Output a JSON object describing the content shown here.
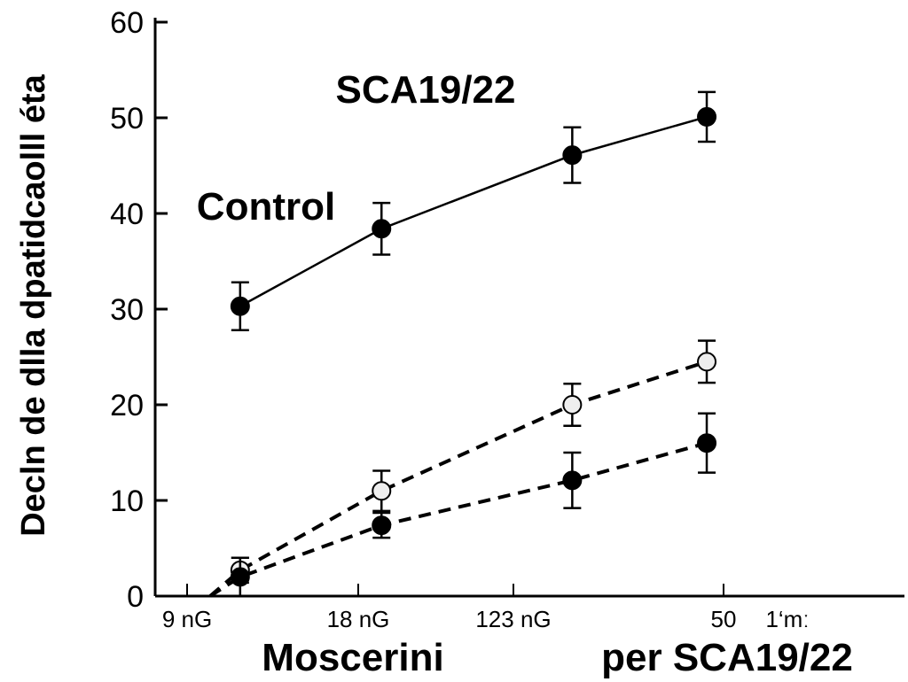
{
  "chart_data": {
    "type": "line",
    "title": "SCA19/22",
    "xlabel_parts": [
      "Moscerini",
      "per  SCA19/22"
    ],
    "ylabel": "Decln de dlla dpatidcaolll éta",
    "ylim": [
      0,
      60
    ],
    "yticks": [
      0,
      10,
      20,
      30,
      40,
      50,
      60
    ],
    "xticks": [
      "9 nG",
      "18 nG",
      "123 nG",
      "50"
    ],
    "x_extra_label": "1‘mː",
    "x": [
      0.31,
      1.15,
      2.28,
      2.92
    ],
    "grid": false,
    "series": [
      {
        "name": "Control",
        "style": "solid",
        "marker": "filled",
        "values": [
          30.3,
          38.4,
          46.1,
          50.1
        ],
        "errors": [
          2.5,
          2.7,
          2.9,
          2.6
        ]
      },
      {
        "style": "dashed",
        "marker": "open",
        "values": [
          2.7,
          11.0,
          20.0,
          24.5
        ],
        "errors": [
          1.3,
          2.1,
          2.2,
          2.2
        ]
      },
      {
        "style": "dashed",
        "marker": "filled",
        "values": [
          2.0,
          7.4,
          12.1,
          16.0
        ],
        "errors": [
          2.0,
          1.3,
          2.9,
          3.1
        ]
      }
    ],
    "colors": {
      "line": "#000000",
      "open_marker_fill": "#eeeeee"
    }
  }
}
